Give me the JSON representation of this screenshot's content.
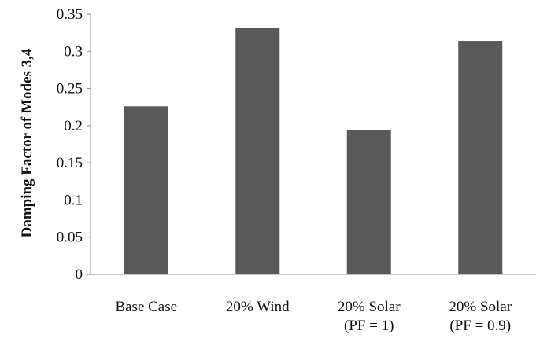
{
  "chart_data": {
    "type": "bar",
    "categories": [
      [
        "Base Case"
      ],
      [
        "20% Wind"
      ],
      [
        "20% Solar",
        "(PF = 1)"
      ],
      [
        "20% Solar",
        "(PF = 0.9)"
      ]
    ],
    "values": [
      0.226,
      0.331,
      0.194,
      0.314
    ],
    "title": "",
    "xlabel": "",
    "ylabel": "Damping Factor of Modes 3,4",
    "ylim": [
      0,
      0.35
    ],
    "yticks": [
      "0",
      "0.05",
      "0.1",
      "0.15",
      "0.2",
      "0.25",
      "0.3",
      "0.35"
    ],
    "grid": false,
    "legend": "none",
    "bar_color": "#595959",
    "axis_color": "#8c8c8c"
  }
}
